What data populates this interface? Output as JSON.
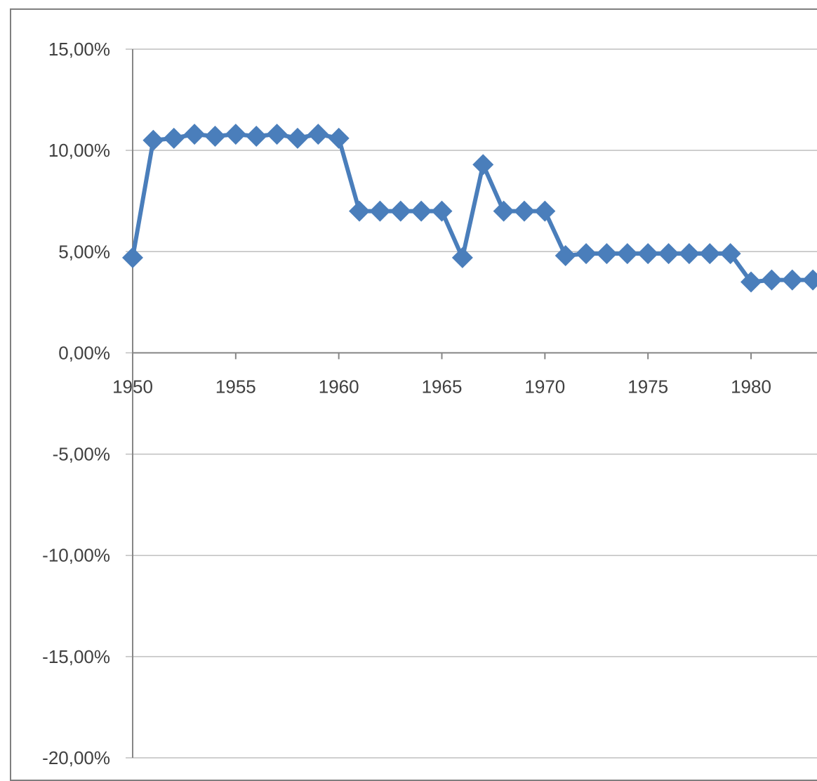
{
  "chart_data": {
    "type": "line",
    "title": "",
    "xlabel": "",
    "ylabel": "",
    "xlim": [
      1950,
      1983.2
    ],
    "ylim": [
      -0.2,
      0.15
    ],
    "grid": true,
    "legend": "none",
    "x_ticks": [
      1950,
      1955,
      1960,
      1965,
      1970,
      1975,
      1980
    ],
    "x_tick_labels": [
      "1950",
      "1955",
      "1960",
      "1965",
      "1970",
      "1975",
      "1980"
    ],
    "y_ticks": [
      0.15,
      0.1,
      0.05,
      0.0,
      -0.05,
      -0.1,
      -0.15,
      -0.2
    ],
    "y_tick_labels": [
      "15,00%",
      "10,00%",
      "5,00%",
      "0,00%",
      "-5,00%",
      "-10,00%",
      "-15,00%",
      "-20,00%"
    ],
    "series": [
      {
        "color": "#4a7ebb",
        "marker": "diamond",
        "x": [
          1950,
          1951,
          1952,
          1953,
          1954,
          1955,
          1956,
          1957,
          1958,
          1959,
          1960,
          1961,
          1962,
          1963,
          1964,
          1965,
          1966,
          1967,
          1968,
          1969,
          1970,
          1971,
          1972,
          1973,
          1974,
          1975,
          1976,
          1977,
          1978,
          1979,
          1980,
          1981,
          1982,
          1983
        ],
        "values": [
          0.047,
          0.105,
          0.106,
          0.108,
          0.107,
          0.108,
          0.107,
          0.108,
          0.106,
          0.108,
          0.106,
          0.07,
          0.07,
          0.07,
          0.07,
          0.07,
          0.047,
          0.093,
          0.07,
          0.07,
          0.07,
          0.048,
          0.049,
          0.049,
          0.049,
          0.049,
          0.049,
          0.049,
          0.049,
          0.049,
          0.035,
          0.036,
          0.036,
          0.036
        ]
      }
    ]
  }
}
